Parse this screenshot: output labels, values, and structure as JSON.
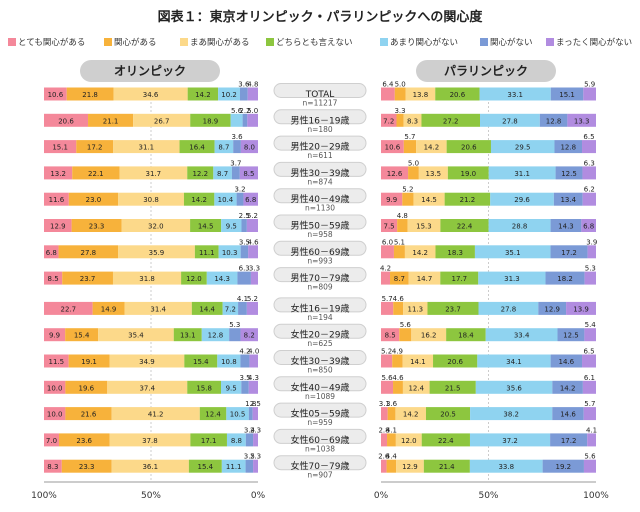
{
  "title": "図表１：東京オリンピック・パラリンピックへの関心度",
  "legend_items": [
    {
      "label": "とても関心がある",
      "color": "#f4889a"
    },
    {
      "label": "関心がある",
      "color": "#f7b23b"
    },
    {
      "label": "まあ関心がある",
      "color": "#fcd98a"
    },
    {
      "label": "どちらとも言えない",
      "color": "#8dc63f"
    },
    {
      "label": "あまり関心がない",
      "color": "#8fd3f0"
    },
    {
      "label": "関心がない",
      "color": "#7b9ad6"
    },
    {
      "label": "まったく関心がない",
      "color": "#b18ce0"
    }
  ],
  "panels": {
    "olympic_label": "オリンピック",
    "paralympic_label": "パラリンピック"
  },
  "chart_data": {
    "type": "bar",
    "orientation": "horizontal-stacked-100-percent",
    "categories": [
      "TOTAL",
      "男性16－19歳",
      "男性20－29歳",
      "男性30－39歳",
      "男性40－49歳",
      "男性50－59歳",
      "男性60－69歳",
      "男性70－79歳",
      "女性16－19歳",
      "女性20－29歳",
      "女性30－39歳",
      "女性40－49歳",
      "女性05－59歳",
      "女性60－69歳",
      "女性70－79歳"
    ],
    "n_labels": [
      "n=11217",
      "n=180",
      "n=611",
      "n=874",
      "n=1130",
      "n=958",
      "n=993",
      "n=809",
      "n=194",
      "n=625",
      "n=850",
      "n=1089",
      "n=959",
      "n=1038",
      "n=907"
    ],
    "series_names": [
      "とても関心がある",
      "関心がある",
      "まあ関心がある",
      "どちらとも言えない",
      "あまり関心がない",
      "関心がない",
      "まったく関心がない"
    ],
    "olympic": [
      [
        10.6,
        21.8,
        34.6,
        14.2,
        10.2,
        3.6,
        4.8
      ],
      [
        20.6,
        21.1,
        26.7,
        18.9,
        5.6,
        2.2,
        5.0
      ],
      [
        15.1,
        17.2,
        31.1,
        16.4,
        8.7,
        3.6,
        8.0
      ],
      [
        13.2,
        22.1,
        31.7,
        12.2,
        8.7,
        3.7,
        8.5
      ],
      [
        11.6,
        23.0,
        30.8,
        14.2,
        10.4,
        3.2,
        6.8
      ],
      [
        12.9,
        23.3,
        32.0,
        14.5,
        9.5,
        2.5,
        5.2
      ],
      [
        6.8,
        27.8,
        35.9,
        11.1,
        10.3,
        3.5,
        4.6
      ],
      [
        8.5,
        23.7,
        31.8,
        12.0,
        14.3,
        6.3,
        3.3
      ],
      [
        22.7,
        14.9,
        31.4,
        14.4,
        7.2,
        4.1,
        5.2
      ],
      [
        9.9,
        15.4,
        35.4,
        13.1,
        12.8,
        5.3,
        8.2
      ],
      [
        11.5,
        19.1,
        34.9,
        15.4,
        10.8,
        4.2,
        4.0
      ],
      [
        10.0,
        19.6,
        37.4,
        15.8,
        9.5,
        3.5,
        4.3
      ],
      [
        10.0,
        21.6,
        41.2,
        12.4,
        10.5,
        1.8,
        2.5
      ],
      [
        7.0,
        23.6,
        37.8,
        17.1,
        8.8,
        3.4,
        2.3
      ],
      [
        8.3,
        23.3,
        36.1,
        15.4,
        11.1,
        3.5,
        2.3
      ]
    ],
    "paralympic": [
      [
        6.4,
        5.0,
        13.8,
        20.6,
        33.1,
        15.1,
        5.9
      ],
      [
        7.2,
        3.3,
        8.3,
        27.2,
        27.8,
        12.8,
        13.3
      ],
      [
        10.6,
        5.7,
        14.2,
        20.6,
        29.5,
        12.8,
        6.5
      ],
      [
        12.6,
        5.0,
        13.5,
        19.0,
        31.1,
        12.5,
        6.3
      ],
      [
        9.9,
        5.2,
        14.5,
        21.2,
        29.6,
        13.4,
        6.2
      ],
      [
        7.5,
        4.8,
        15.3,
        22.4,
        28.8,
        14.3,
        6.8
      ],
      [
        6.0,
        5.1,
        14.2,
        18.3,
        35.1,
        17.2,
        3.9
      ],
      [
        4.2,
        8.7,
        14.7,
        17.7,
        31.3,
        18.2,
        5.3
      ],
      [
        5.7,
        4.6,
        11.3,
        23.7,
        27.8,
        12.9,
        13.9
      ],
      [
        8.5,
        5.6,
        16.2,
        18.4,
        33.4,
        12.5,
        5.4
      ],
      [
        5.2,
        4.9,
        14.1,
        20.6,
        34.1,
        14.6,
        6.5
      ],
      [
        5.6,
        4.6,
        12.4,
        21.5,
        35.6,
        14.2,
        6.1
      ],
      [
        3.1,
        3.6,
        14.2,
        20.5,
        38.2,
        14.6,
        5.7
      ],
      [
        2.8,
        4.1,
        12.0,
        22.4,
        37.2,
        17.2,
        4.1
      ],
      [
        2.6,
        4.4,
        12.9,
        21.4,
        33.8,
        19.2,
        5.6
      ]
    ],
    "olympic_axis_ticks": [
      "100%",
      "50%",
      "0%"
    ],
    "paralympic_axis_ticks": [
      "0%",
      "50%",
      "100%"
    ],
    "xlim": [
      0,
      100
    ]
  }
}
